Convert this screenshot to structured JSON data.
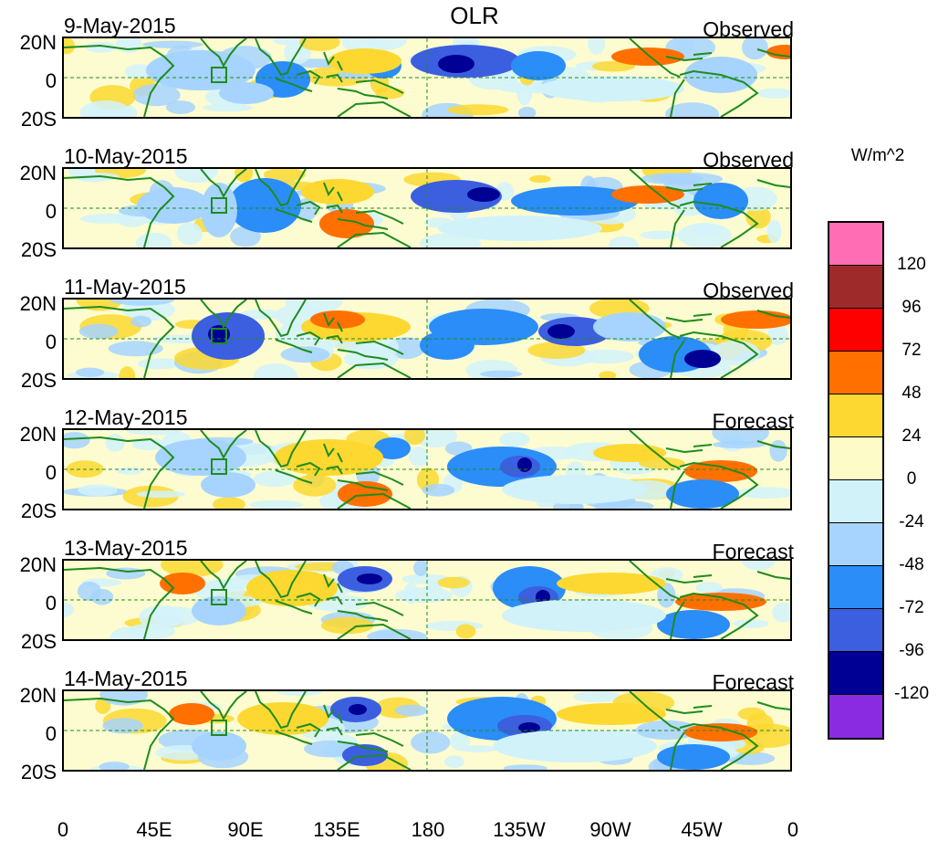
{
  "title": "OLR",
  "panels": [
    {
      "date": "9-May-2015",
      "type": "Observed"
    },
    {
      "date": "10-May-2015",
      "type": "Observed"
    },
    {
      "date": "11-May-2015",
      "type": "Observed"
    },
    {
      "date": "12-May-2015",
      "type": "Forecast"
    },
    {
      "date": "13-May-2015",
      "type": "Forecast"
    },
    {
      "date": "14-May-2015",
      "type": "Forecast"
    }
  ],
  "lat_labels": [
    "20N",
    "0",
    "20S"
  ],
  "lon_labels": [
    "0",
    "45E",
    "90E",
    "135E",
    "180",
    "135W",
    "90W",
    "45W",
    "0"
  ],
  "colorbar": {
    "unit": "W/m^2",
    "labels": [
      "120",
      "96",
      "72",
      "48",
      "24",
      "0",
      "-24",
      "-48",
      "-72",
      "-96",
      "-120"
    ],
    "colors": [
      "#ff6eb4",
      "#9e2a2a",
      "#ff0000",
      "#ff7000",
      "#fcd831",
      "#fdfcc9",
      "#d2f2fa",
      "#a6d4ff",
      "#2b8df7",
      "#3c5fe0",
      "#000094",
      "#8a2be2"
    ]
  },
  "colors": {
    "land": "#1e8c1e",
    "dashed": "#1e8c1e",
    "border": "#000000"
  }
}
